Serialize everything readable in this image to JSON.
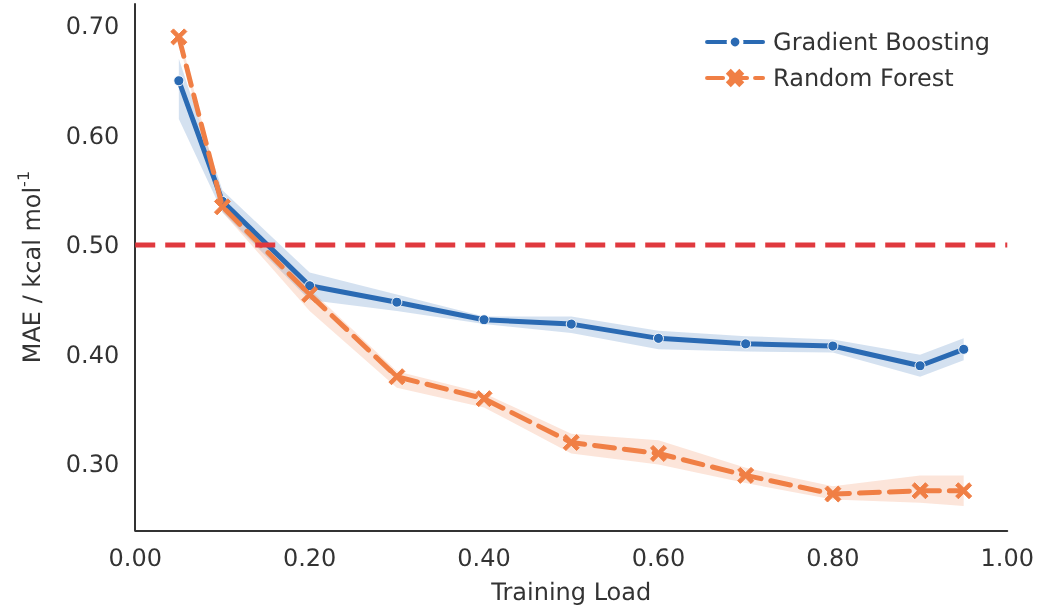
{
  "chart_data": {
    "type": "line",
    "xlabel": "Training Load",
    "ylabel": "MAE / kcal mol$^{-1}$",
    "xlim": [
      0,
      1
    ],
    "xticks": [
      {
        "value": 0,
        "label": "0.00"
      },
      {
        "value": 0.2,
        "label": "0.20"
      },
      {
        "value": 0.4,
        "label": "0.40"
      },
      {
        "value": 0.6,
        "label": "0.60"
      },
      {
        "value": 0.8,
        "label": "0.80"
      },
      {
        "value": 1,
        "label": "1.00"
      }
    ],
    "ylim": [
      0.24,
      0.72
    ],
    "yticks": [
      {
        "value": 0.3,
        "label": "0.30"
      },
      {
        "value": 0.4,
        "label": "0.40"
      },
      {
        "value": 0.5,
        "label": "0.50"
      },
      {
        "value": 0.6,
        "label": "0.60"
      },
      {
        "value": 0.7,
        "label": "0.70"
      }
    ],
    "grid": false,
    "legend": "top right",
    "x": [
      0.05,
      0.1,
      0.2,
      0.3,
      0.4,
      0.5,
      0.6,
      0.7,
      0.8,
      0.9,
      0.95
    ],
    "series": [
      {
        "name": "Gradient Boosting",
        "color": "#2a6ab3",
        "marker": "circle",
        "line_style": "solid",
        "values": [
          0.65,
          0.54,
          0.463,
          0.448,
          0.432,
          0.428,
          0.415,
          0.41,
          0.408,
          0.39,
          0.405
        ],
        "lower": [
          0.615,
          0.53,
          0.45,
          0.44,
          0.428,
          0.42,
          0.405,
          0.403,
          0.402,
          0.38,
          0.395
        ],
        "upper": [
          0.67,
          0.55,
          0.475,
          0.455,
          0.435,
          0.435,
          0.422,
          0.417,
          0.414,
          0.4,
          0.415
        ]
      },
      {
        "name": "Random Forest",
        "color": "#f07f45",
        "marker": "cross",
        "line_style": "dashed",
        "values": [
          0.69,
          0.535,
          0.455,
          0.38,
          0.36,
          0.32,
          0.31,
          0.29,
          0.273,
          0.276,
          0.276
        ],
        "lower": [
          0.685,
          0.53,
          0.44,
          0.37,
          0.352,
          0.31,
          0.3,
          0.283,
          0.268,
          0.265,
          0.262
        ],
        "upper": [
          0.695,
          0.54,
          0.46,
          0.385,
          0.365,
          0.328,
          0.322,
          0.297,
          0.28,
          0.29,
          0.29
        ]
      }
    ],
    "ref_lines": [
      {
        "axis": "y",
        "value": 0.5,
        "label": null,
        "color": "#e0393e",
        "line_style": "dashed"
      }
    ]
  }
}
